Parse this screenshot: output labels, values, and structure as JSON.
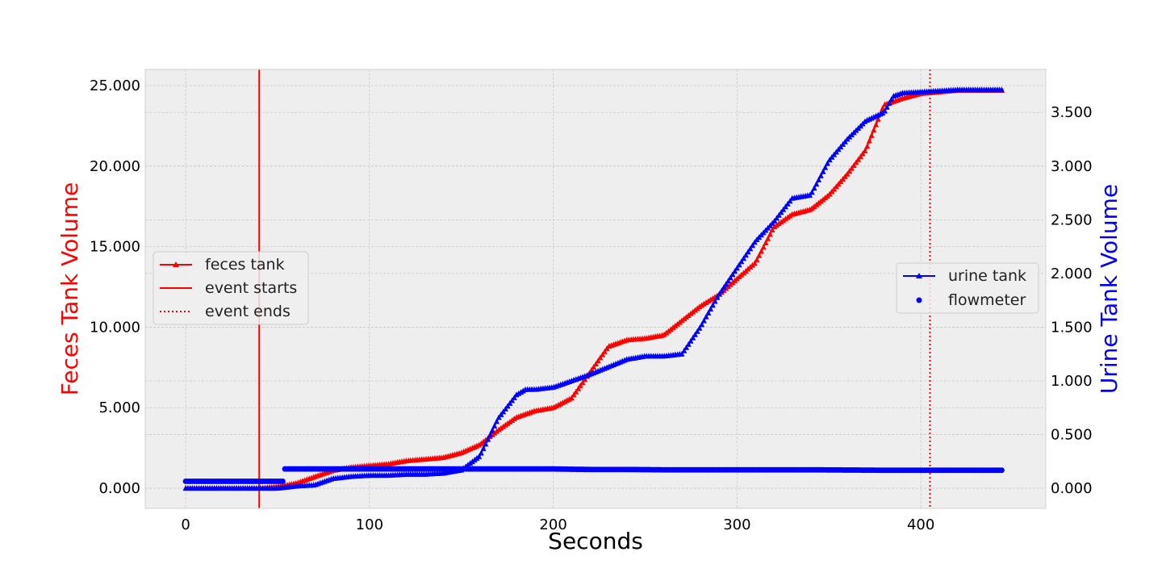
{
  "chart_data": {
    "type": "line",
    "xlabel": "Seconds",
    "ylabel_left": "Feces Tank Volume",
    "ylabel_right": "Urine Tank Volume",
    "xlim": [
      -22,
      468
    ],
    "ylim_left": [
      -1.25,
      26.0
    ],
    "ylim_right": [
      -0.187,
      3.9
    ],
    "x_ticks": [
      0,
      100,
      200,
      300,
      400
    ],
    "y_ticks_left": [
      0,
      5,
      10,
      15,
      20,
      25
    ],
    "y_tick_labels_left": [
      "0.000",
      "5.000",
      "10.000",
      "15.000",
      "20.000",
      "25.000"
    ],
    "y_ticks_right": [
      0,
      0.5,
      1.0,
      1.5,
      2.0,
      2.5,
      3.0,
      3.5
    ],
    "y_tick_labels_right": [
      "0.000",
      "0.500",
      "1.000",
      "1.500",
      "2.000",
      "2.500",
      "3.000",
      "3.500"
    ],
    "grid": true,
    "event_start_x": 40,
    "event_end_x": 405,
    "colors": {
      "feces": "#ff0000",
      "urine": "#0000ff",
      "axes_bg": "#eeeeee",
      "grid": "#c8c8c8"
    },
    "legend_left": {
      "placement": "center-left",
      "entries": [
        "feces tank",
        "event starts",
        "event ends"
      ]
    },
    "legend_right": {
      "placement": "center-right",
      "entries": [
        "urine tank",
        "flowmeter"
      ]
    },
    "series": [
      {
        "name": "feces tank",
        "axis": "left",
        "marker": "triangle",
        "x": [
          0,
          20,
          40,
          50,
          60,
          70,
          80,
          90,
          100,
          110,
          120,
          130,
          140,
          150,
          160,
          170,
          180,
          190,
          200,
          210,
          220,
          230,
          240,
          250,
          260,
          270,
          280,
          290,
          300,
          310,
          320,
          330,
          340,
          350,
          360,
          370,
          380,
          390,
          400,
          410,
          420,
          430,
          440,
          445
        ],
        "y": [
          0,
          0,
          0,
          0.1,
          0.3,
          0.7,
          1.1,
          1.3,
          1.4,
          1.5,
          1.7,
          1.8,
          1.9,
          2.2,
          2.7,
          3.6,
          4.4,
          4.8,
          5.0,
          5.6,
          7.2,
          8.8,
          9.2,
          9.3,
          9.5,
          10.4,
          11.3,
          12.0,
          13.0,
          14.0,
          16.2,
          17.0,
          17.3,
          18.2,
          19.5,
          21.0,
          23.8,
          24.2,
          24.5,
          24.6,
          24.7,
          24.7,
          24.7,
          24.7
        ]
      },
      {
        "name": "urine tank",
        "axis": "right",
        "marker": "triangle",
        "x": [
          0,
          20,
          40,
          50,
          60,
          70,
          80,
          90,
          100,
          110,
          120,
          130,
          140,
          150,
          160,
          170,
          180,
          185,
          190,
          200,
          210,
          220,
          230,
          240,
          250,
          260,
          270,
          280,
          290,
          300,
          310,
          320,
          330,
          340,
          350,
          360,
          370,
          380,
          385,
          390,
          400,
          410,
          420,
          430,
          440,
          445
        ],
        "y": [
          0,
          0,
          0,
          0,
          0.02,
          0.03,
          0.09,
          0.11,
          0.12,
          0.12,
          0.13,
          0.13,
          0.14,
          0.17,
          0.3,
          0.65,
          0.87,
          0.92,
          0.92,
          0.94,
          1.0,
          1.06,
          1.13,
          1.2,
          1.23,
          1.23,
          1.25,
          1.5,
          1.8,
          2.05,
          2.3,
          2.48,
          2.7,
          2.73,
          3.05,
          3.25,
          3.42,
          3.5,
          3.65,
          3.68,
          3.69,
          3.7,
          3.71,
          3.71,
          3.71,
          3.71
        ]
      },
      {
        "name": "flowmeter",
        "axis": "right",
        "marker": "circle",
        "x": [
          0,
          10,
          20,
          30,
          40,
          50,
          53,
          54,
          60,
          80,
          100,
          120,
          140,
          160,
          180,
          200,
          220,
          240,
          260,
          270,
          280,
          300,
          320,
          340,
          360,
          380,
          400,
          420,
          445
        ],
        "y": [
          0.065,
          0.065,
          0.065,
          0.065,
          0.065,
          0.065,
          0.065,
          0.18,
          0.18,
          0.18,
          0.18,
          0.18,
          0.18,
          0.18,
          0.18,
          0.18,
          0.175,
          0.175,
          0.172,
          0.172,
          0.172,
          0.172,
          0.172,
          0.172,
          0.17,
          0.168,
          0.168,
          0.168,
          0.168
        ]
      }
    ]
  }
}
